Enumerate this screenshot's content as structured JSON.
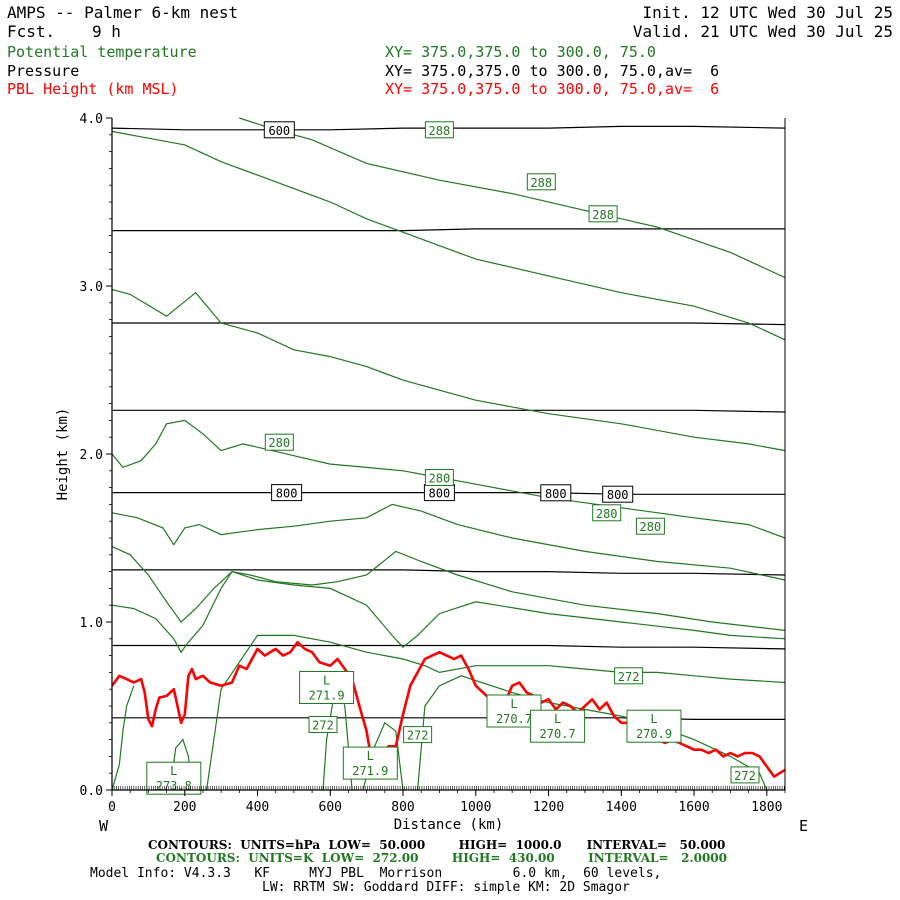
{
  "header": {
    "title": "AMPS -- Palmer 6-km nest",
    "fcst_label": "Fcst.",
    "fcst_value": "9 h",
    "init": "Init. 12 UTC Wed 30 Jul 25",
    "valid": "Valid. 21 UTC Wed 30 Jul 25",
    "fields": [
      {
        "name": "Potential temperature",
        "xy": "XY= 375.0,375.0 to 300.0, 75.0"
      },
      {
        "name": "Pressure",
        "xy": "XY= 375.0,375.0 to 300.0, 75.0,av=  6"
      },
      {
        "name": "PBL Height (km MSL)",
        "xy": "XY= 375.0,375.0 to 300.0, 75.0,av=  6"
      }
    ]
  },
  "colors": {
    "theta": "#207820",
    "pressure": "#000000",
    "pbl": "#ff0000"
  },
  "footer": {
    "contours_p": "CONTOURS:  UNITS=hPa  LOW=  50.000        HIGH=  1000.0      INTERVAL=   50.000",
    "contours_t": "CONTOURS:  UNITS=K  LOW=  272.00        HIGH=  430.00        INTERVAL=   2.0000",
    "model_info": "Model Info: V4.3.3   KF     MYJ PBL  Morrison         6.0 km,  60 levels,",
    "physics": "LW: RRTM SW: Goddard DIFF: simple KM: 2D Smagor"
  },
  "chart_data": {
    "type": "line",
    "xlabel": "Distance (km)",
    "ylabel": "Height (km)",
    "xlim": [
      0,
      1850
    ],
    "ylim": [
      0,
      4.0
    ],
    "x_ticks": [
      0,
      200,
      400,
      600,
      800,
      1000,
      1200,
      1400,
      1600,
      1800
    ],
    "x_tick_labels": [
      "0",
      "200",
      "400",
      "600",
      "800",
      "1000",
      "1200",
      "1400",
      "1600",
      "1800"
    ],
    "y_ticks": [
      0,
      1,
      2,
      3,
      4
    ],
    "y_tick_labels": [
      "0.0",
      "1.0",
      "2.0",
      "3.0",
      "4.0"
    ],
    "x_edge_labels": {
      "left": "W",
      "right": "E"
    },
    "pressure_contours_hPa": [
      {
        "y": [
          3.94,
          3.93,
          3.93,
          3.93,
          3.94,
          3.94,
          3.94,
          3.95,
          3.95,
          3.94
        ]
      },
      {
        "y": [
          3.33,
          3.33,
          3.33,
          3.33,
          3.33,
          3.34,
          3.34,
          3.34,
          3.34,
          3.34
        ]
      },
      {
        "y": [
          2.78,
          2.78,
          2.78,
          2.78,
          2.78,
          2.78,
          2.78,
          2.78,
          2.78,
          2.77
        ]
      },
      {
        "y": [
          2.26,
          2.26,
          2.26,
          2.26,
          2.26,
          2.26,
          2.26,
          2.26,
          2.26,
          2.25
        ]
      },
      {
        "y": [
          1.77,
          1.77,
          1.77,
          1.77,
          1.77,
          1.77,
          1.77,
          1.76,
          1.76,
          1.76
        ],
        "label": "800"
      },
      {
        "y": [
          1.31,
          1.31,
          1.31,
          1.31,
          1.31,
          1.3,
          1.3,
          1.29,
          1.29,
          1.28
        ]
      },
      {
        "y": [
          0.86,
          0.86,
          0.86,
          0.86,
          0.86,
          0.86,
          0.86,
          0.85,
          0.85,
          0.84
        ]
      },
      {
        "y": [
          0.43,
          0.43,
          0.43,
          0.43,
          0.43,
          0.43,
          0.43,
          0.43,
          0.42,
          0.42
        ]
      }
    ],
    "pressure_x": [
      0,
      200,
      400,
      600,
      800,
      1000,
      1200,
      1400,
      1600,
      1850
    ],
    "top_pressure_label": "600",
    "theta_contours_K": [
      {
        "x": [
          350,
          450,
          550,
          700,
          900,
          1100,
          1300,
          1500,
          1700,
          1850
        ],
        "y": [
          4.0,
          3.93,
          3.87,
          3.73,
          3.63,
          3.55,
          3.45,
          3.35,
          3.2,
          3.05
        ],
        "label": "288"
      },
      {
        "x": [
          0,
          100,
          200,
          300,
          400,
          500,
          600,
          700,
          800,
          900,
          1000,
          1200,
          1400,
          1600,
          1750,
          1850
        ],
        "y": [
          3.92,
          3.88,
          3.84,
          3.74,
          3.66,
          3.58,
          3.5,
          3.4,
          3.32,
          3.24,
          3.16,
          3.06,
          2.96,
          2.88,
          2.78,
          2.68
        ]
      },
      {
        "x": [
          0,
          50,
          150,
          230,
          300,
          400,
          500,
          600,
          700,
          800,
          900,
          1000,
          1200,
          1400,
          1600,
          1750,
          1850
        ],
        "y": [
          2.98,
          2.95,
          2.82,
          2.96,
          2.78,
          2.72,
          2.62,
          2.58,
          2.52,
          2.44,
          2.38,
          2.32,
          2.24,
          2.18,
          2.1,
          2.06,
          2.02
        ]
      },
      {
        "x": [
          0,
          30,
          80,
          120,
          150,
          200,
          250,
          300,
          360,
          440,
          520,
          600,
          700,
          800,
          900,
          1000,
          1200,
          1400,
          1600,
          1750,
          1850
        ],
        "y": [
          2.0,
          1.92,
          1.96,
          2.06,
          2.18,
          2.2,
          2.12,
          2.02,
          2.06,
          2.02,
          1.98,
          1.94,
          1.92,
          1.9,
          1.86,
          1.82,
          1.74,
          1.68,
          1.62,
          1.58,
          1.5
        ]
      },
      {
        "x": [
          0,
          70,
          140,
          170,
          200,
          240,
          300,
          400,
          500,
          600,
          700,
          770,
          850,
          950,
          1100,
          1300,
          1500,
          1700,
          1850
        ],
        "y": [
          1.65,
          1.62,
          1.56,
          1.46,
          1.56,
          1.58,
          1.52,
          1.55,
          1.57,
          1.6,
          1.62,
          1.7,
          1.66,
          1.58,
          1.5,
          1.42,
          1.36,
          1.32,
          1.25
        ],
        "label": "280"
      },
      {
        "x": [
          0,
          50,
          100,
          150,
          190,
          230,
          280,
          330,
          380,
          450,
          550,
          620,
          700,
          780,
          850,
          950,
          1100,
          1300,
          1500,
          1650,
          1850
        ],
        "y": [
          1.45,
          1.4,
          1.28,
          1.12,
          1.0,
          1.08,
          1.2,
          1.3,
          1.28,
          1.24,
          1.22,
          1.24,
          1.28,
          1.42,
          1.36,
          1.28,
          1.18,
          1.1,
          1.05,
          1.0,
          0.95
        ]
      },
      {
        "x": [
          0,
          60,
          120,
          170,
          190,
          210,
          250,
          300,
          330,
          400,
          500,
          600,
          700,
          770,
          800,
          840,
          900,
          1000,
          1200,
          1400,
          1600,
          1700,
          1850
        ],
        "y": [
          1.1,
          1.08,
          1.02,
          0.9,
          0.82,
          0.88,
          0.98,
          1.2,
          1.3,
          1.25,
          1.22,
          1.2,
          1.1,
          0.92,
          0.85,
          0.92,
          1.05,
          1.12,
          1.05,
          1.0,
          0.95,
          0.92,
          0.9
        ]
      },
      {
        "x": [
          260,
          300,
          400,
          500,
          600,
          700,
          750,
          800,
          860,
          900,
          1000,
          1100,
          1200,
          1300,
          1400,
          1500,
          1600,
          1700,
          1850
        ],
        "y": [
          0.0,
          0.6,
          0.92,
          0.92,
          0.88,
          0.82,
          0.8,
          0.78,
          0.74,
          0.7,
          0.74,
          0.74,
          0.74,
          0.72,
          0.7,
          0.7,
          0.68,
          0.66,
          0.64
        ],
        "label": "272"
      },
      {
        "x": [
          0,
          20,
          30,
          40,
          60
        ],
        "y": [
          0.0,
          0.15,
          0.35,
          0.5,
          0.62
        ]
      },
      {
        "x": [
          160,
          175,
          195,
          210,
          220
        ],
        "y": [
          0.0,
          0.25,
          0.3,
          0.2,
          0.0
        ]
      },
      {
        "x": [
          580,
          590,
          610,
          625,
          640,
          660
        ],
        "y": [
          0.0,
          0.3,
          0.56,
          0.6,
          0.5,
          0.0
        ]
      },
      {
        "x": [
          690,
          720,
          750,
          780,
          800
        ],
        "y": [
          0.0,
          0.25,
          0.4,
          0.35,
          0.0
        ]
      },
      {
        "x": [
          840,
          860,
          900,
          960,
          1100,
          1200,
          1300,
          1400,
          1500,
          1600,
          1700,
          1780,
          1800
        ],
        "y": [
          0.0,
          0.5,
          0.62,
          0.68,
          0.58,
          0.52,
          0.48,
          0.44,
          0.38,
          0.3,
          0.2,
          0.1,
          0.0
        ]
      }
    ],
    "theta_labels": [
      "288",
      "288",
      "288",
      "280",
      "280",
      "280",
      "280",
      "272",
      "272",
      "272",
      "272"
    ],
    "pbl_height": {
      "x": [
        0,
        20,
        40,
        60,
        80,
        90,
        100,
        110,
        120,
        130,
        150,
        170,
        180,
        190,
        200,
        210,
        220,
        230,
        250,
        270,
        300,
        330,
        350,
        370,
        400,
        420,
        450,
        470,
        490,
        510,
        530,
        550,
        570,
        600,
        620,
        640,
        660,
        680,
        700,
        710,
        720,
        740,
        760,
        780,
        800,
        820,
        840,
        860,
        880,
        900,
        920,
        940,
        960,
        980,
        1000,
        1020,
        1040,
        1060,
        1080,
        1100,
        1120,
        1140,
        1160,
        1180,
        1200,
        1220,
        1240,
        1260,
        1280,
        1300,
        1320,
        1340,
        1360,
        1380,
        1400,
        1420,
        1440,
        1460,
        1480,
        1500,
        1520,
        1540,
        1560,
        1580,
        1600,
        1620,
        1640,
        1660,
        1680,
        1700,
        1720,
        1740,
        1760,
        1780,
        1800,
        1820,
        1850
      ],
      "y": [
        0.62,
        0.68,
        0.66,
        0.64,
        0.66,
        0.58,
        0.42,
        0.38,
        0.48,
        0.55,
        0.56,
        0.6,
        0.5,
        0.4,
        0.45,
        0.68,
        0.72,
        0.66,
        0.68,
        0.64,
        0.62,
        0.64,
        0.74,
        0.72,
        0.84,
        0.8,
        0.84,
        0.8,
        0.82,
        0.88,
        0.84,
        0.82,
        0.76,
        0.74,
        0.78,
        0.72,
        0.66,
        0.5,
        0.35,
        0.22,
        0.24,
        0.2,
        0.26,
        0.26,
        0.45,
        0.62,
        0.7,
        0.78,
        0.8,
        0.82,
        0.8,
        0.78,
        0.8,
        0.72,
        0.62,
        0.58,
        0.54,
        0.56,
        0.52,
        0.62,
        0.64,
        0.58,
        0.56,
        0.52,
        0.54,
        0.48,
        0.52,
        0.5,
        0.46,
        0.5,
        0.54,
        0.48,
        0.52,
        0.44,
        0.4,
        0.4,
        0.36,
        0.35,
        0.32,
        0.3,
        0.28,
        0.3,
        0.28,
        0.26,
        0.24,
        0.24,
        0.22,
        0.24,
        0.2,
        0.22,
        0.2,
        0.22,
        0.22,
        0.2,
        0.14,
        0.08,
        0.12
      ]
    },
    "minima_markers": [
      {
        "symbol": "L",
        "value": "271.9",
        "x": 590,
        "y": 0.61
      },
      {
        "symbol": "L",
        "value": "271.9",
        "x": 710,
        "y": 0.16
      },
      {
        "symbol": "L",
        "value": "270.7",
        "x": 1105,
        "y": 0.47
      },
      {
        "symbol": "L",
        "value": "270.7",
        "x": 1225,
        "y": 0.38
      },
      {
        "symbol": "L",
        "value": "270.9",
        "x": 1490,
        "y": 0.38
      },
      {
        "symbol": "L",
        "value": "273.8",
        "x": 170,
        "y": 0.07
      }
    ]
  }
}
